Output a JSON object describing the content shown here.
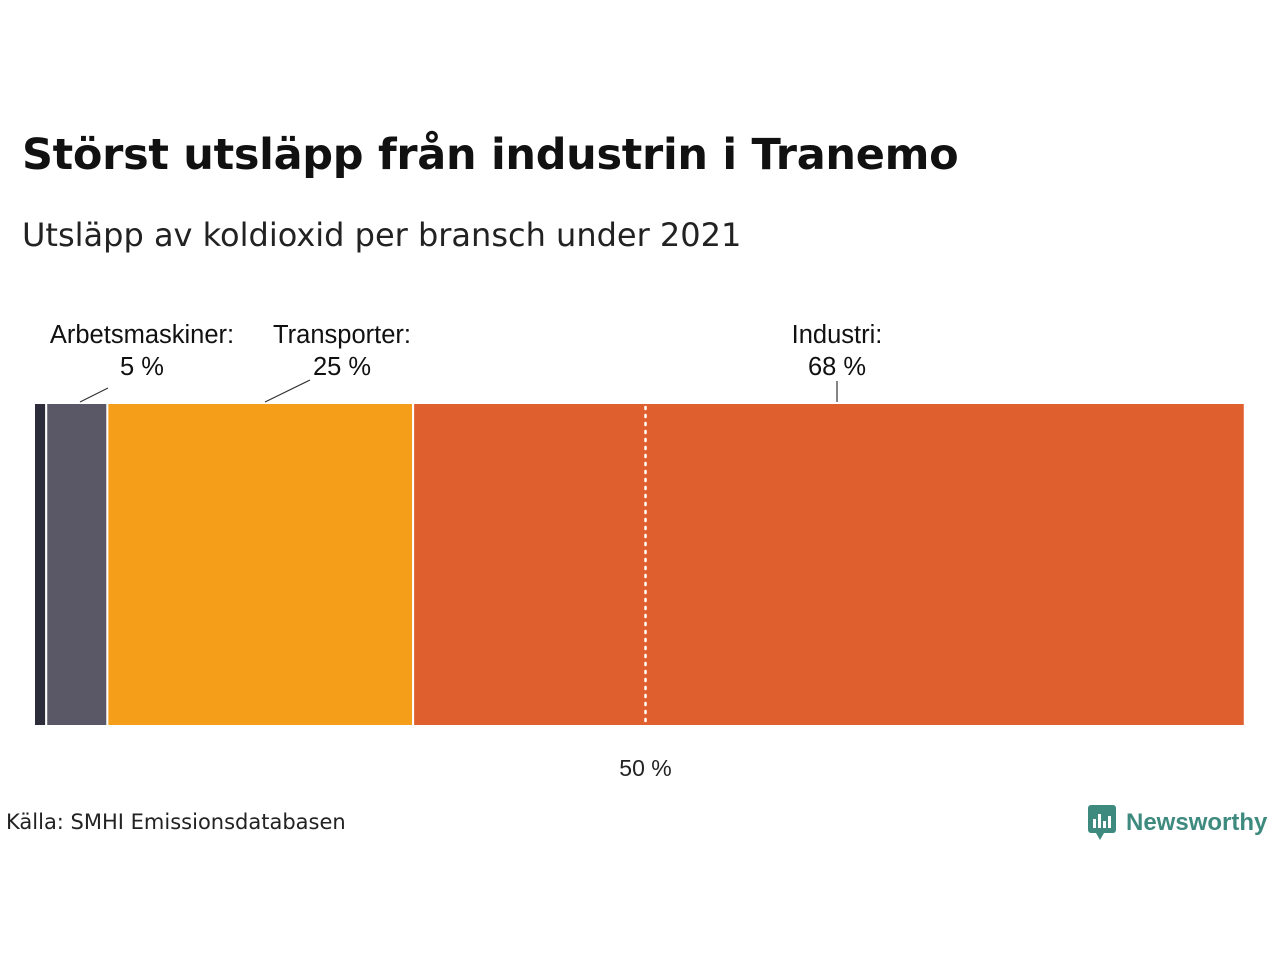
{
  "header": {
    "title": "Störst utsläpp från industrin i Tranemo",
    "subtitle": "Utsläpp av koldioxid per bransch under 2021"
  },
  "footer": {
    "source": "Källa: SMHI Emissionsdatabasen",
    "logo_text": "Newsworthy",
    "logo_icon": "newsworthy-chart-bubble-icon"
  },
  "colors": {
    "background": "#ffffff",
    "segment_other": "#2d2c3a",
    "segment_arbetsmaskiner": "#5a5866",
    "segment_transporter": "#f59e1a",
    "segment_industri": "#e05f2f",
    "brand": "#3f8a7f"
  },
  "chart_data": {
    "type": "stacked-bar-horizontal",
    "orientation": "horizontal",
    "unit": "%",
    "total": 100,
    "segments": [
      {
        "name": "",
        "value": 1,
        "label": "",
        "value_label": "",
        "color": "#2d2c3a"
      },
      {
        "name": "Arbetsmaskiner",
        "value": 5,
        "label": "Arbetsmaskiner:",
        "value_label": "5 %",
        "color": "#5a5866"
      },
      {
        "name": "Transporter",
        "value": 25,
        "label": "Transporter:",
        "value_label": "25 %",
        "color": "#f59e1a"
      },
      {
        "name": "Industri",
        "value": 68,
        "label": "Industri:",
        "value_label": "68 %",
        "color": "#e05f2f"
      }
    ],
    "reference_line": {
      "value": 50,
      "label": "50 %",
      "style": "dotted"
    }
  }
}
